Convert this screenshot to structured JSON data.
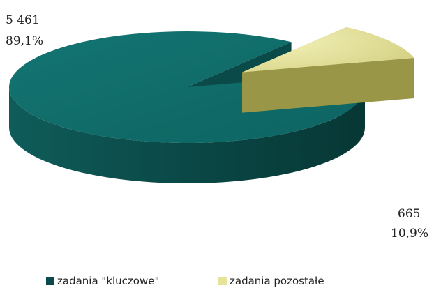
{
  "chart_data": {
    "type": "pie",
    "style": "3d-exploded",
    "title": "",
    "categories": [
      "zadania \"kluczowe\"",
      "zadania pozostałe"
    ],
    "values": [
      5461,
      665
    ],
    "percent_labels": [
      "89,1%",
      "10,9%"
    ],
    "value_labels": [
      "5 461",
      "665"
    ],
    "colors": [
      "#0e6b68",
      "#e6e49a"
    ],
    "side_colors": [
      "#0a4b49",
      "#9a9648"
    ],
    "legend_position": "bottom",
    "exploded_slice": 1
  }
}
